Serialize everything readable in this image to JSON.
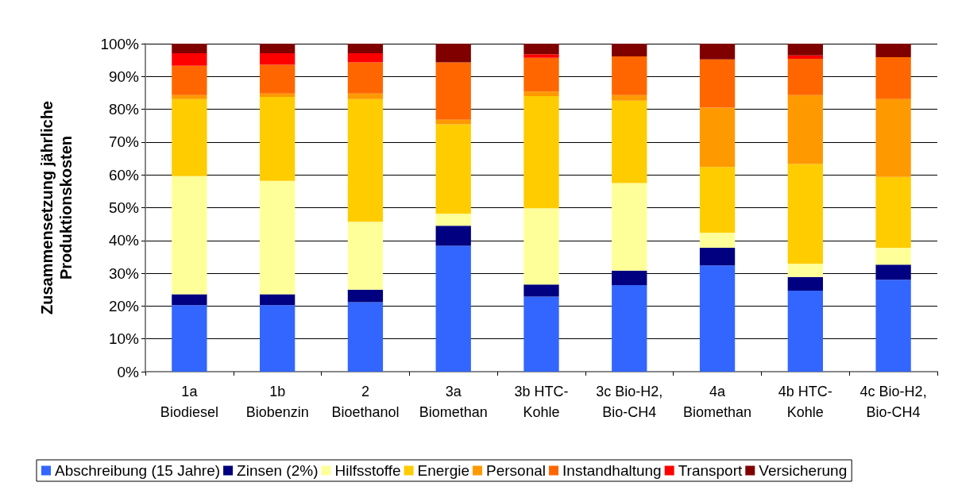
{
  "chart_data": {
    "type": "bar",
    "stacked": true,
    "ylabel": "Zusammensetzung jährliche\nProduktionskosten",
    "categories": [
      "1a\nBiodiesel",
      "1b\nBiobenzin",
      "2\nBioethanol",
      "3a\nBiomethan",
      "3b HTC-\nKohle",
      "3c Bio-H2,\nBio-CH4",
      "4a\nBiomethan",
      "4b HTC-\nKohle",
      "4c Bio-H2,\nBio-CH4"
    ],
    "series": [
      {
        "name": "Abschreibung (15 Jahre)",
        "color": "#3366ff",
        "values": [
          20.3,
          20.3,
          21.2,
          38.4,
          22.9,
          26.4,
          32.4,
          24.7,
          28.0
        ]
      },
      {
        "name": "Zinsen (2%)",
        "color": "#000080",
        "values": [
          3.3,
          3.3,
          3.8,
          6.1,
          3.7,
          4.4,
          5.4,
          4.2,
          4.6
        ]
      },
      {
        "name": "Hilfsstoffe",
        "color": "#ffff99",
        "values": [
          36.0,
          34.6,
          20.7,
          3.7,
          23.2,
          26.7,
          4.6,
          4.0,
          5.2
        ]
      },
      {
        "name": "Energie",
        "color": "#ffcc00",
        "values": [
          23.5,
          25.6,
          37.4,
          27.2,
          34.2,
          25.1,
          20.0,
          30.4,
          21.6
        ]
      },
      {
        "name": "Personal",
        "color": "#ff9900",
        "values": [
          1.2,
          1.0,
          1.7,
          1.4,
          1.4,
          1.7,
          18.1,
          21.0,
          23.7
        ]
      },
      {
        "name": "Instandhaltung",
        "color": "#ff6600",
        "values": [
          9.0,
          8.8,
          9.5,
          17.5,
          10.3,
          11.8,
          14.7,
          11.1,
          12.8
        ]
      },
      {
        "name": "Transport",
        "color": "#ff0000",
        "values": [
          3.8,
          3.5,
          2.8,
          0,
          1.1,
          0,
          0,
          1.0,
          0
        ]
      },
      {
        "name": "Versicherung",
        "color": "#800000",
        "values": [
          2.9,
          2.9,
          2.9,
          5.7,
          3.2,
          3.9,
          4.8,
          3.6,
          4.1
        ]
      }
    ],
    "ylim": [
      0,
      100
    ],
    "yticks": [
      {
        "value": 0,
        "label": "0%"
      },
      {
        "value": 10,
        "label": "10%"
      },
      {
        "value": 20,
        "label": "20%"
      },
      {
        "value": 30,
        "label": "30%"
      },
      {
        "value": 40,
        "label": "40%"
      },
      {
        "value": 50,
        "label": "50%"
      },
      {
        "value": 60,
        "label": "60%"
      },
      {
        "value": 70,
        "label": "70%"
      },
      {
        "value": 80,
        "label": "80%"
      },
      {
        "value": 90,
        "label": "90%"
      },
      {
        "value": 100,
        "label": "100%"
      }
    ],
    "grid": "y",
    "legend": "bottom"
  }
}
